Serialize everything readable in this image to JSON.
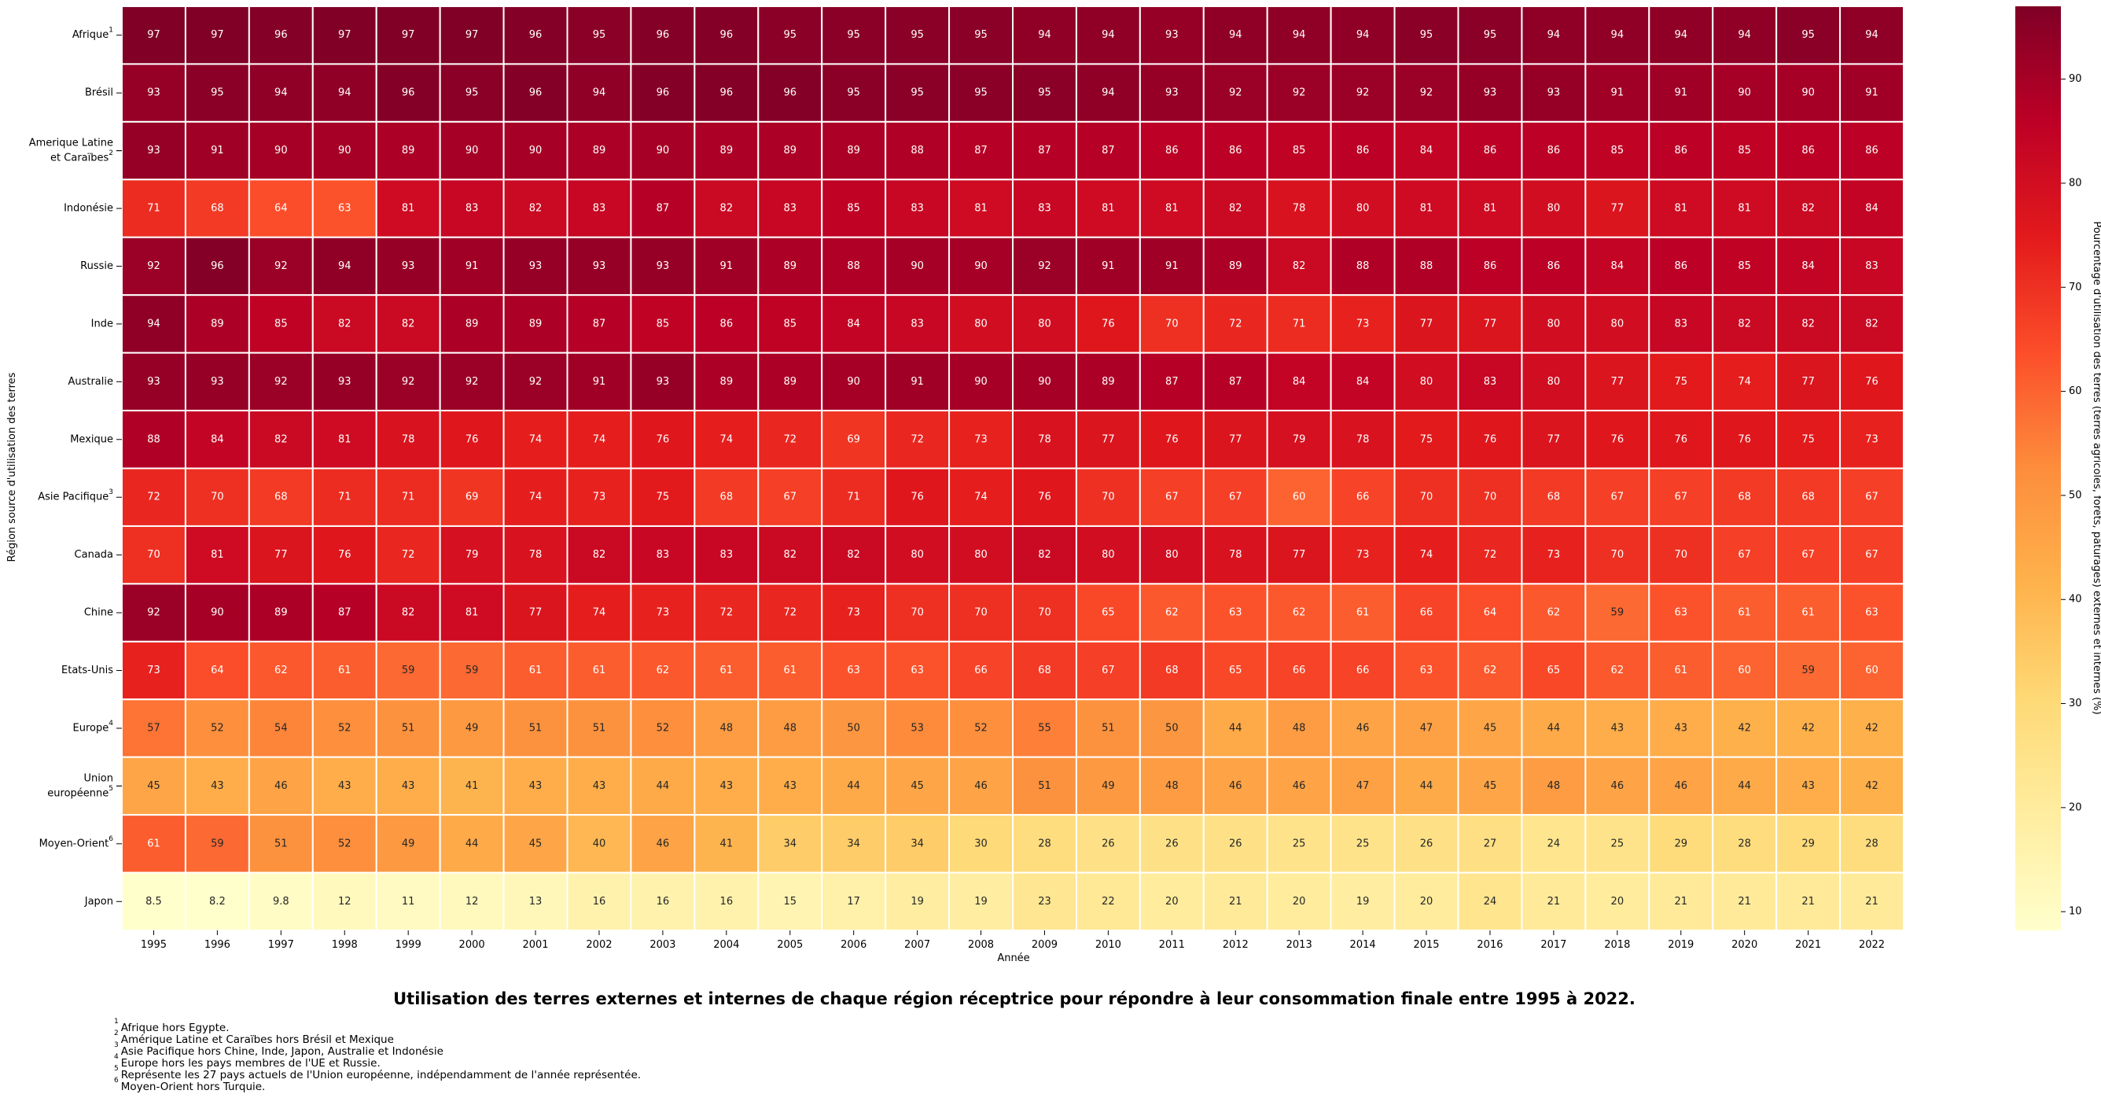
{
  "chart_data": {
    "type": "heatmap",
    "title": "Utilisation des terres externes et internes de chaque région réceptrice pour répondre à leur consommation finale entre 1995 à 2022.",
    "xlabel": "Année",
    "ylabel": "Région source d'utilisation des terres",
    "colorbar_label": "Pourcentage d'utilisation des terres (terres agricoles, forêts, pâturages) externes et internes (%)",
    "colorbar_ticks": [
      "10",
      "20",
      "30",
      "40",
      "50",
      "60",
      "70",
      "80",
      "90"
    ],
    "colorbar_range": [
      8.2,
      97
    ],
    "colormap": "YlOrRd",
    "annotations": true,
    "x": [
      "1995",
      "1996",
      "1997",
      "1998",
      "1999",
      "2000",
      "2001",
      "2002",
      "2003",
      "2004",
      "2005",
      "2006",
      "2007",
      "2008",
      "2009",
      "2010",
      "2011",
      "2012",
      "2013",
      "2014",
      "2015",
      "2016",
      "2017",
      "2018",
      "2019",
      "2020",
      "2021",
      "2022"
    ],
    "rows": [
      {
        "label": [
          "Afrique"
        ],
        "sup": "1",
        "values": [
          97,
          97,
          96,
          97,
          97,
          97,
          96,
          95,
          96,
          96,
          95,
          95,
          95,
          95,
          94,
          94,
          93,
          94,
          94,
          94,
          95,
          95,
          94,
          94,
          94,
          94,
          95,
          94
        ]
      },
      {
        "label": [
          "Brésil"
        ],
        "sup": "",
        "values": [
          93,
          95,
          94,
          94,
          96,
          95,
          96,
          94,
          96,
          96,
          96,
          95,
          95,
          95,
          95,
          94,
          93,
          92,
          92,
          92,
          92,
          93,
          93,
          91,
          91,
          90,
          90,
          91
        ]
      },
      {
        "label": [
          "Amerique Latine",
          "et Caraïbes"
        ],
        "sup": "2",
        "values": [
          93,
          91,
          90,
          90,
          89,
          90,
          90,
          89,
          90,
          89,
          89,
          89,
          88,
          87,
          87,
          87,
          86,
          86,
          85,
          86,
          84,
          86,
          86,
          85,
          86,
          85,
          86,
          86
        ]
      },
      {
        "label": [
          "Indonésie"
        ],
        "sup": "",
        "values": [
          71,
          68,
          64,
          63,
          81,
          83,
          82,
          83,
          87,
          82,
          83,
          85,
          83,
          81,
          83,
          81,
          81,
          82,
          78,
          80,
          81,
          81,
          80,
          77,
          81,
          81,
          82,
          84
        ]
      },
      {
        "label": [
          "Russie"
        ],
        "sup": "",
        "values": [
          92,
          96,
          92,
          94,
          93,
          91,
          93,
          93,
          93,
          91,
          89,
          88,
          90,
          90,
          92,
          91,
          91,
          89,
          82,
          88,
          88,
          86,
          86,
          84,
          86,
          85,
          84,
          83
        ]
      },
      {
        "label": [
          "Inde"
        ],
        "sup": "",
        "values": [
          94,
          89,
          85,
          82,
          82,
          89,
          89,
          87,
          85,
          86,
          85,
          84,
          83,
          80,
          80,
          76,
          70,
          72,
          71,
          73,
          77,
          77,
          80,
          80,
          83,
          82,
          82,
          82
        ]
      },
      {
        "label": [
          "Australie"
        ],
        "sup": "",
        "values": [
          93,
          93,
          92,
          93,
          92,
          92,
          92,
          91,
          93,
          89,
          89,
          90,
          91,
          90,
          90,
          89,
          87,
          87,
          84,
          84,
          80,
          83,
          80,
          77,
          75,
          74,
          77,
          76
        ]
      },
      {
        "label": [
          "Mexique"
        ],
        "sup": "",
        "values": [
          88,
          84,
          82,
          81,
          78,
          76,
          74,
          74,
          76,
          74,
          72,
          69,
          72,
          73,
          78,
          77,
          76,
          77,
          79,
          78,
          75,
          76,
          77,
          76,
          76,
          76,
          75,
          73
        ]
      },
      {
        "label": [
          "Asie Pacifique"
        ],
        "sup": "3",
        "values": [
          72,
          70,
          68,
          71,
          71,
          69,
          74,
          73,
          75,
          68,
          67,
          71,
          76,
          74,
          76,
          70,
          67,
          67,
          60,
          66,
          70,
          70,
          68,
          67,
          67,
          68,
          68,
          67
        ]
      },
      {
        "label": [
          "Canada"
        ],
        "sup": "",
        "values": [
          70,
          81,
          77,
          76,
          72,
          79,
          78,
          82,
          83,
          83,
          82,
          82,
          80,
          80,
          82,
          80,
          80,
          78,
          77,
          73,
          74,
          72,
          73,
          70,
          70,
          67,
          67,
          67
        ]
      },
      {
        "label": [
          "Chine"
        ],
        "sup": "",
        "values": [
          92,
          90,
          89,
          87,
          82,
          81,
          77,
          74,
          73,
          72,
          72,
          73,
          70,
          70,
          70,
          65,
          62,
          63,
          62,
          61,
          66,
          64,
          62,
          59,
          63,
          61,
          61,
          63
        ]
      },
      {
        "label": [
          "Etats-Unis"
        ],
        "sup": "",
        "values": [
          73,
          64,
          62,
          61,
          59,
          59,
          61,
          61,
          62,
          61,
          61,
          63,
          63,
          66,
          68,
          67,
          68,
          65,
          66,
          66,
          63,
          62,
          65,
          62,
          61,
          60,
          59,
          60
        ]
      },
      {
        "label": [
          "Europe"
        ],
        "sup": "4",
        "values": [
          57,
          52,
          54,
          52,
          51,
          49,
          51,
          51,
          52,
          48,
          48,
          50,
          53,
          52,
          55,
          51,
          50,
          44,
          48,
          46,
          47,
          45,
          44,
          43,
          43,
          42,
          42,
          42
        ]
      },
      {
        "label": [
          "Union",
          "européenne"
        ],
        "sup": "5",
        "values": [
          45,
          43,
          46,
          43,
          43,
          41,
          43,
          43,
          44,
          43,
          43,
          44,
          45,
          46,
          51,
          49,
          48,
          46,
          46,
          47,
          44,
          45,
          48,
          46,
          46,
          44,
          43,
          42
        ]
      },
      {
        "label": [
          "Moyen-Orient"
        ],
        "sup": "6",
        "values": [
          61,
          59,
          51,
          52,
          49,
          44,
          45,
          40,
          46,
          41,
          34,
          34,
          34,
          30,
          28,
          26,
          26,
          26,
          25,
          25,
          26,
          27,
          24,
          25,
          29,
          28,
          29,
          28
        ]
      },
      {
        "label": [
          "Japon"
        ],
        "sup": "",
        "values": [
          8.5,
          8.2,
          9.8,
          12,
          11,
          12,
          13,
          16,
          16,
          16,
          15,
          17,
          19,
          19,
          23,
          22,
          20,
          21,
          20,
          19,
          20,
          24,
          21,
          20,
          21,
          21,
          21,
          21
        ]
      }
    ]
  },
  "footnotes": [
    {
      "num": "1",
      "text": "Afrique hors Egypte."
    },
    {
      "num": "2",
      "text": "Amérique Latine et Caraïbes hors Brésil et Mexique"
    },
    {
      "num": "3",
      "text": "Asie Pacifique hors Chine, Inde, Japon, Australie et Indonésie"
    },
    {
      "num": "4",
      "text": "Europe hors les pays membres de l'UE et Russie."
    },
    {
      "num": "5",
      "text": "Représente les 27 pays actuels de l'Union européenne, indépendamment de l'année représentée."
    },
    {
      "num": "6",
      "text": "Moyen-Orient hors Turquie."
    }
  ]
}
